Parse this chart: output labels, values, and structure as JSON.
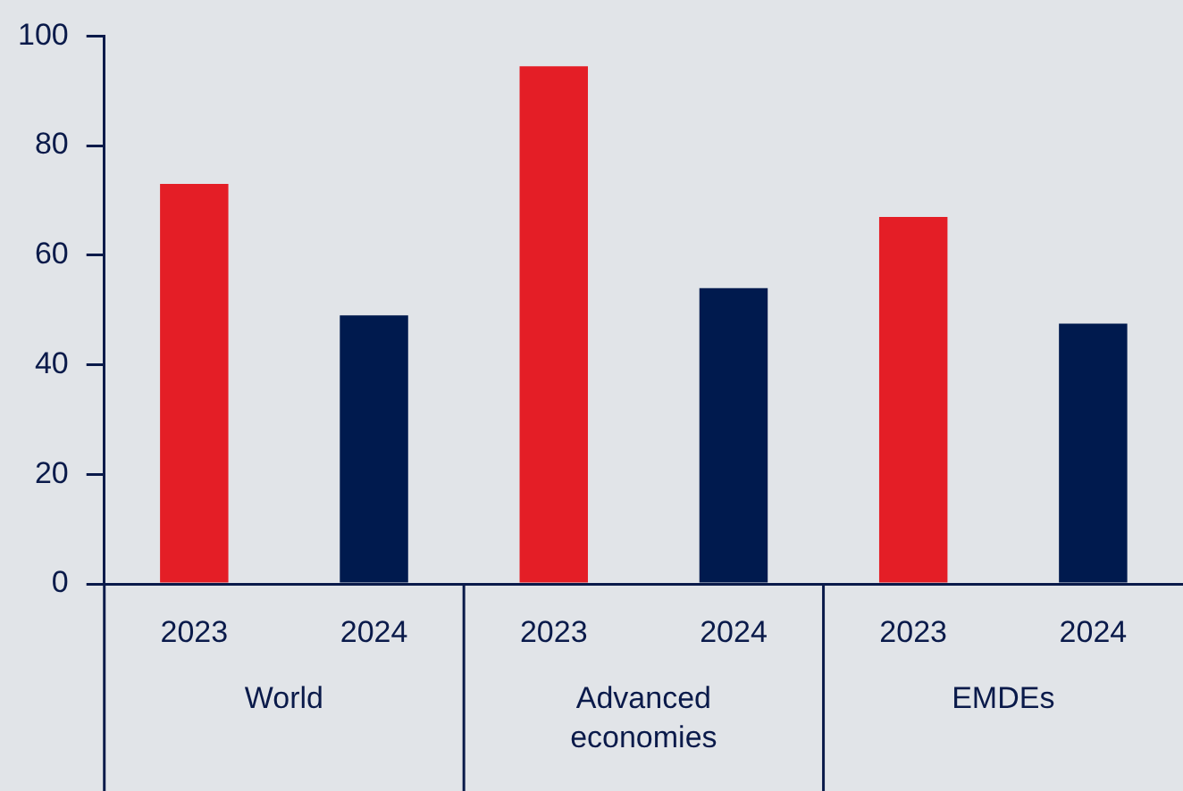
{
  "chart_data": {
    "type": "bar",
    "categories": [
      "World",
      "Advanced economies",
      "EMDEs"
    ],
    "series": [
      {
        "name": "2023",
        "color": "#e41e26",
        "values": [
          73,
          94.5,
          67
        ]
      },
      {
        "name": "2024",
        "color": "#001a4e",
        "values": [
          49,
          54,
          47.5
        ]
      }
    ],
    "ylim": [
      0,
      100
    ],
    "yticks": [
      0,
      20,
      40,
      60,
      80,
      100
    ],
    "grid": false,
    "legend": false
  }
}
